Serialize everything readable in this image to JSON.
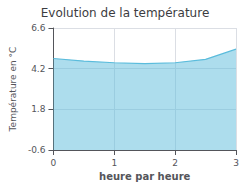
{
  "chart_data": {
    "type": "area",
    "title": "Evolution de la température",
    "xlabel": "heure par heure",
    "ylabel": "Température en °C",
    "x": [
      0,
      0.5,
      1.0,
      1.5,
      2.0,
      2.5,
      3.0
    ],
    "values": [
      4.8,
      4.65,
      4.55,
      4.5,
      4.55,
      4.75,
      5.35
    ],
    "color": "#5bbcdc",
    "xlim": [
      0,
      3
    ],
    "xticks": [
      0,
      1,
      2,
      3
    ],
    "ylim": [
      -0.6,
      6.6
    ],
    "yticks": [
      -0.6,
      1.8,
      4.2,
      6.6
    ],
    "grid": true
  }
}
